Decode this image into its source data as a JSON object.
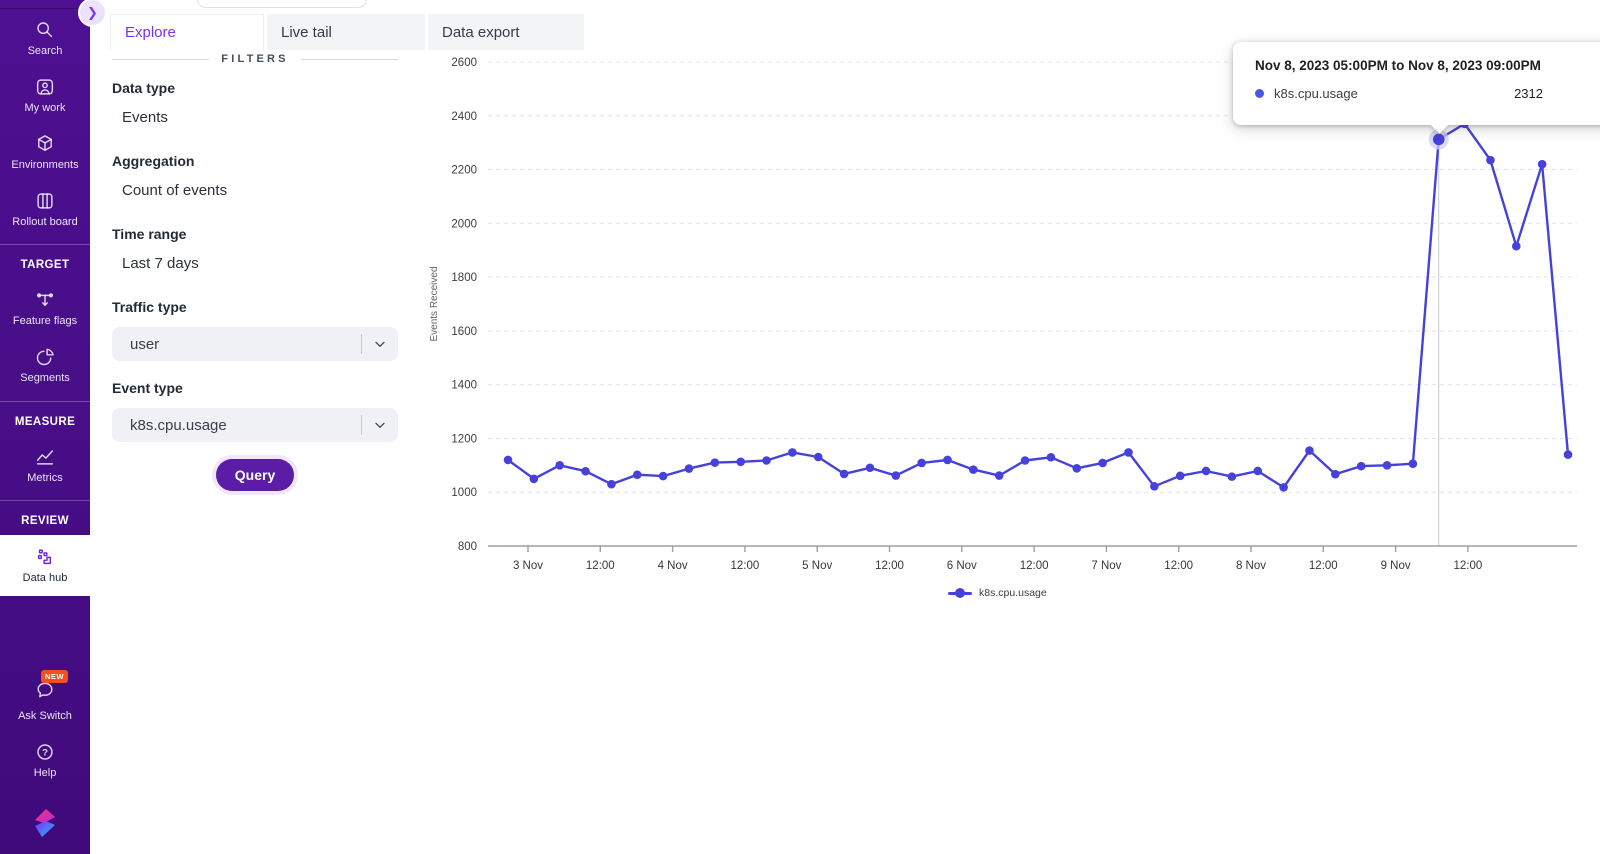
{
  "sidebar": {
    "toggle_icon": "❯",
    "items": [
      {
        "label": "Search",
        "icon": "search-icon"
      },
      {
        "label": "My work",
        "icon": "my-work-icon"
      },
      {
        "label": "Environments",
        "icon": "environments-icon"
      },
      {
        "label": "Rollout board",
        "icon": "rollout-board-icon"
      }
    ],
    "sections": [
      {
        "header": "TARGET",
        "items": [
          {
            "label": "Feature flags",
            "icon": "feature-flags-icon"
          },
          {
            "label": "Segments",
            "icon": "segments-icon"
          }
        ]
      },
      {
        "header": "MEASURE",
        "items": [
          {
            "label": "Metrics",
            "icon": "metrics-icon"
          }
        ]
      },
      {
        "header": "REVIEW",
        "items": [
          {
            "label": "Data hub",
            "icon": "data-hub-icon",
            "active": true
          }
        ]
      }
    ],
    "footer_items": [
      {
        "label": "Ask Switch",
        "icon": "chat-bubble-icon",
        "badge": "NEW"
      },
      {
        "label": "Help",
        "icon": "help-icon",
        "glyph": "?"
      }
    ]
  },
  "tabs": [
    {
      "label": "Explore",
      "active": true
    },
    {
      "label": "Live tail",
      "active": false
    },
    {
      "label": "Data export",
      "active": false
    }
  ],
  "filters": {
    "divider_label": "FILTERS",
    "fields": [
      {
        "label": "Data type",
        "value": "Events",
        "type": "text"
      },
      {
        "label": "Aggregation",
        "value": "Count of events",
        "type": "text"
      },
      {
        "label": "Time range",
        "value": "Last 7 days",
        "type": "text"
      },
      {
        "label": "Traffic type",
        "value": "user",
        "type": "select"
      },
      {
        "label": "Event type",
        "value": "k8s.cpu.usage",
        "type": "select"
      }
    ],
    "query_button": "Query"
  },
  "tooltip": {
    "title": "Nov 8, 2023 05:00PM to Nov 8, 2023 09:00PM",
    "series": "k8s.cpu.usage",
    "value": "2312"
  },
  "chart_data": {
    "type": "line",
    "title": "",
    "xlabel": "",
    "ylabel": "Events Received",
    "ylim": [
      800,
      2600
    ],
    "y_ticks": [
      800,
      1000,
      1200,
      1400,
      1600,
      1800,
      2000,
      2200,
      2400,
      2600
    ],
    "x_tick_labels": [
      "3 Nov",
      "12:00",
      "4 Nov",
      "12:00",
      "5 Nov",
      "12:00",
      "6 Nov",
      "12:00",
      "7 Nov",
      "12:00",
      "8 Nov",
      "12:00",
      "9 Nov",
      "12:00"
    ],
    "grid": "horizontal-dashed",
    "legend_position": "bottom",
    "bucket_hours": 4,
    "series": [
      {
        "name": "k8s.cpu.usage",
        "color": "#4741db",
        "x": [
          "Nov 2 17:00",
          "Nov 2 21:00",
          "Nov 3 01:00",
          "Nov 3 05:00",
          "Nov 3 09:00",
          "Nov 3 13:00",
          "Nov 3 17:00",
          "Nov 3 21:00",
          "Nov 4 01:00",
          "Nov 4 05:00",
          "Nov 4 09:00",
          "Nov 4 13:00",
          "Nov 4 17:00",
          "Nov 4 21:00",
          "Nov 5 01:00",
          "Nov 5 05:00",
          "Nov 5 09:00",
          "Nov 5 13:00",
          "Nov 5 17:00",
          "Nov 5 21:00",
          "Nov 6 01:00",
          "Nov 6 05:00",
          "Nov 6 09:00",
          "Nov 6 13:00",
          "Nov 6 17:00",
          "Nov 6 21:00",
          "Nov 7 01:00",
          "Nov 7 05:00",
          "Nov 7 09:00",
          "Nov 7 13:00",
          "Nov 7 17:00",
          "Nov 7 21:00",
          "Nov 8 01:00",
          "Nov 8 05:00",
          "Nov 8 09:00",
          "Nov 8 13:00",
          "Nov 8 17:00",
          "Nov 8 21:00",
          "Nov 9 01:00",
          "Nov 9 05:00",
          "Nov 9 09:00",
          "Nov 9 13:00"
        ],
        "values": [
          1120,
          1050,
          1100,
          1078,
          1030,
          1065,
          1060,
          1088,
          1110,
          1113,
          1118,
          1148,
          1131,
          1068,
          1091,
          1062,
          1109,
          1120,
          1084,
          1062,
          1118,
          1130,
          1089,
          1109,
          1148,
          1022,
          1061,
          1079,
          1058,
          1079,
          1018,
          1155,
          1067,
          1097,
          1100,
          1106,
          2312,
          2370,
          2235,
          1915,
          2220,
          1140
        ]
      }
    ],
    "highlight": {
      "index": 36,
      "value": 2312,
      "range_label": "Nov 8, 2023 05:00PM to Nov 8, 2023 09:00PM"
    }
  },
  "colors": {
    "sidebar_purple": "#470d86",
    "accent_purple": "#7c3aed",
    "query_button": "#5b1da5",
    "line_blue": "#4741db",
    "badge_orange": "#f4501e"
  }
}
